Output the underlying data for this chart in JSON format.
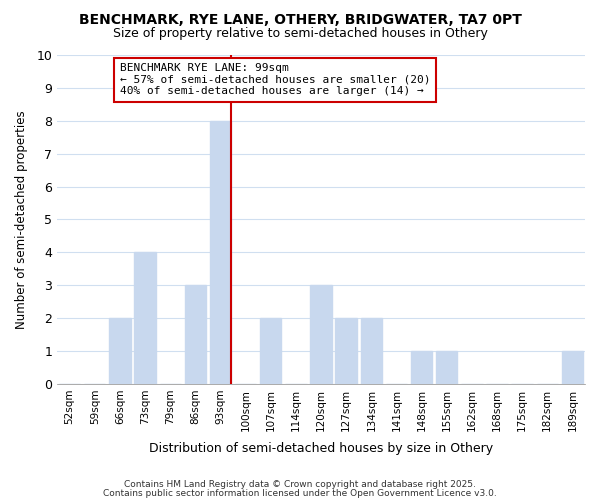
{
  "title1": "BENCHMARK, RYE LANE, OTHERY, BRIDGWATER, TA7 0PT",
  "title2": "Size of property relative to semi-detached houses in Othery",
  "xlabel": "Distribution of semi-detached houses by size in Othery",
  "ylabel": "Number of semi-detached properties",
  "categories": [
    "52sqm",
    "59sqm",
    "66sqm",
    "73sqm",
    "79sqm",
    "86sqm",
    "93sqm",
    "100sqm",
    "107sqm",
    "114sqm",
    "120sqm",
    "127sqm",
    "134sqm",
    "141sqm",
    "148sqm",
    "155sqm",
    "162sqm",
    "168sqm",
    "175sqm",
    "182sqm",
    "189sqm"
  ],
  "values": [
    0,
    0,
    2,
    4,
    0,
    3,
    8,
    0,
    2,
    0,
    3,
    2,
    2,
    0,
    1,
    1,
    0,
    0,
    0,
    0,
    1
  ],
  "benchmark_index": 6,
  "benchmark_label": "BENCHMARK RYE LANE: 99sqm",
  "annotation_line1": "← 57% of semi-detached houses are smaller (20)",
  "annotation_line2": "40% of semi-detached houses are larger (14) →",
  "bar_color": "#c8d8ee",
  "benchmark_line_color": "#cc0000",
  "annotation_box_edge": "#cc0000",
  "ylim": [
    0,
    10
  ],
  "yticks": [
    0,
    1,
    2,
    3,
    4,
    5,
    6,
    7,
    8,
    9,
    10
  ],
  "footer1": "Contains HM Land Registry data © Crown copyright and database right 2025.",
  "footer2": "Contains public sector information licensed under the Open Government Licence v3.0.",
  "bg_color": "#ffffff",
  "grid_color": "#d0dff0"
}
